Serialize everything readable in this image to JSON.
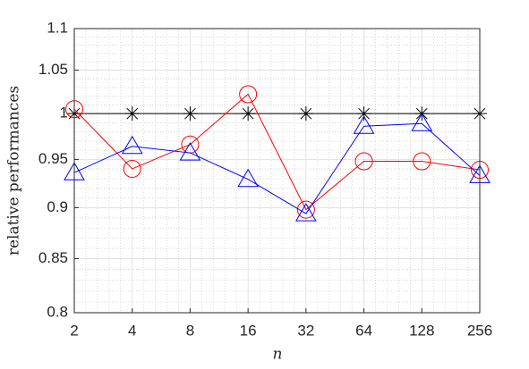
{
  "chart_data": {
    "type": "line",
    "x_label": "n",
    "y_label": "relative performances",
    "x": [
      2,
      4,
      8,
      16,
      32,
      64,
      128,
      256
    ],
    "xlim": [
      2,
      256
    ],
    "xticks": [
      2,
      4,
      8,
      16,
      32,
      64,
      128,
      256
    ],
    "x_scale": "log",
    "ylim": [
      0.8,
      1.1
    ],
    "yticks": [
      0.8,
      0.85,
      0.9,
      0.95,
      1,
      1.05,
      1.1
    ],
    "y_scale": "log",
    "grid": true,
    "minor_grid": true,
    "series": [
      {
        "color": "#000000",
        "marker": "asterisk",
        "values": [
          1,
          1,
          1,
          1,
          1,
          1,
          1,
          1
        ]
      },
      {
        "color": "#ff0000",
        "marker": "circle",
        "values": [
          1.005,
          0.94,
          0.966,
          1.022,
          0.898,
          0.948,
          0.948,
          0.939
        ]
      },
      {
        "color": "#0000ff",
        "marker": "triangle",
        "values": [
          0.936,
          0.964,
          0.957,
          0.929,
          0.894,
          0.986,
          0.989,
          0.933
        ]
      }
    ]
  }
}
